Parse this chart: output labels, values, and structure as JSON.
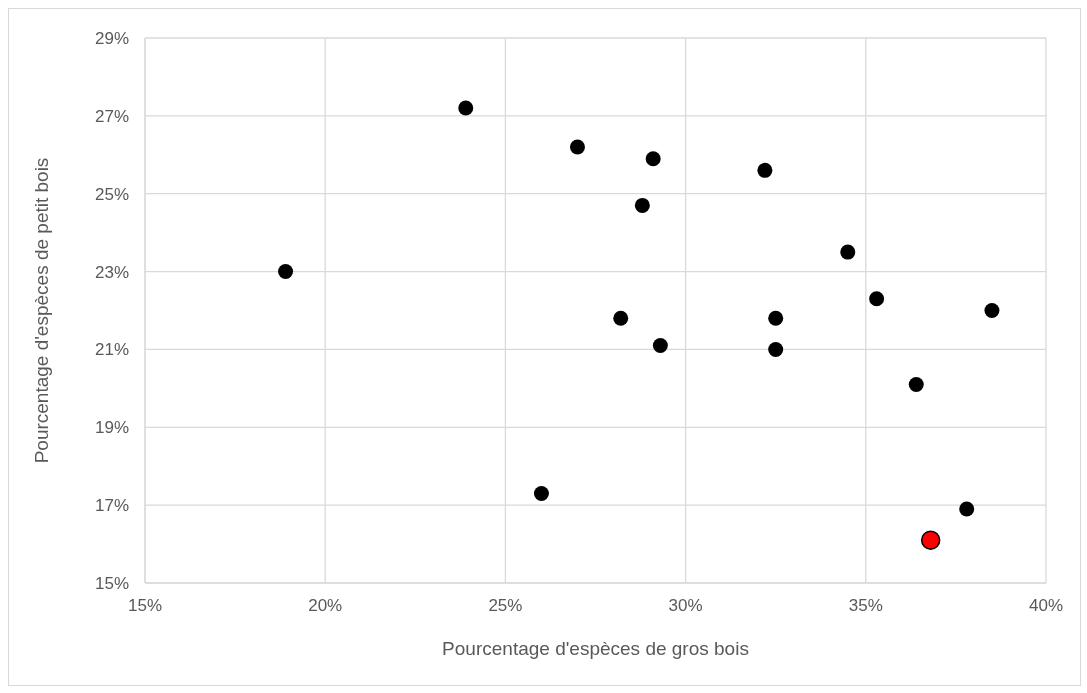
{
  "chart_data": {
    "type": "scatter",
    "xlabel": "Pourcentage d'espèces de gros bois",
    "ylabel": "Pourcentage d'espèces de petit bois",
    "xlim": [
      15,
      40
    ],
    "xticks": [
      {
        "value": 15,
        "label": "15%"
      },
      {
        "value": 20,
        "label": "20%"
      },
      {
        "value": 25,
        "label": "25%"
      },
      {
        "value": 30,
        "label": "30%"
      },
      {
        "value": 35,
        "label": "35%"
      },
      {
        "value": 40,
        "label": "40%"
      }
    ],
    "ylim": [
      15,
      29
    ],
    "yticks": [
      {
        "value": 15,
        "label": "15%"
      },
      {
        "value": 17,
        "label": "17%"
      },
      {
        "value": 19,
        "label": "19%"
      },
      {
        "value": 21,
        "label": "21%"
      },
      {
        "value": 23,
        "label": "23%"
      },
      {
        "value": 25,
        "label": "25%"
      },
      {
        "value": 27,
        "label": "27%"
      },
      {
        "value": 29,
        "label": "29%"
      }
    ],
    "grid": true,
    "legend": false,
    "marker": "circle",
    "series": [
      {
        "color": "#000000",
        "x": [
          18.9,
          23.9,
          27.0,
          26.0,
          29.1,
          28.8,
          32.2,
          34.5,
          28.2,
          29.3,
          32.5,
          32.5,
          35.3,
          38.5,
          36.4,
          37.8
        ],
        "values": [
          23.0,
          27.2,
          26.2,
          17.3,
          25.9,
          24.7,
          25.6,
          23.5,
          21.8,
          21.1,
          21.8,
          21.0,
          22.3,
          22.0,
          20.1,
          16.9
        ]
      },
      {
        "color": "#ff0000",
        "x": [
          36.8
        ],
        "values": [
          16.1
        ]
      }
    ]
  }
}
